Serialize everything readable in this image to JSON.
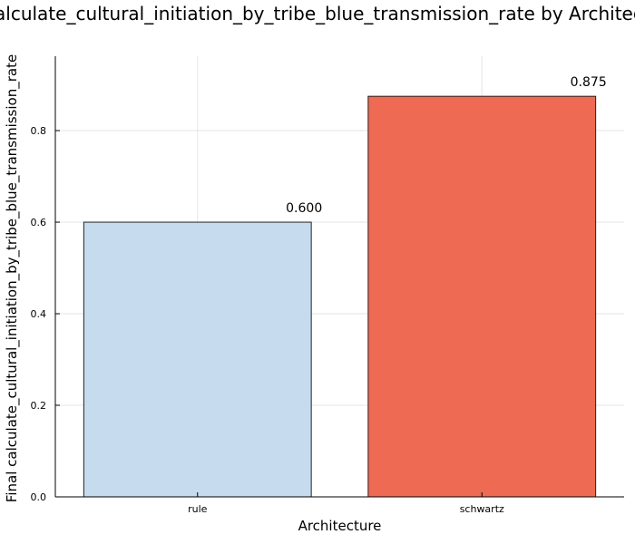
{
  "chart_data": {
    "type": "bar",
    "title": "Final calculate_cultural_initiation_by_tribe_blue_transmission_rate by Architecture",
    "xlabel": "Architecture",
    "ylabel": "Final calculate_cultural_initiation_by_tribe_blue_transmission_rate",
    "categories": [
      "rule",
      "schwartz"
    ],
    "values": [
      0.6,
      0.875
    ],
    "data_labels": [
      "0.600",
      "0.875"
    ],
    "colors": [
      "#c6dbed",
      "#ef6a53"
    ],
    "ylim": [
      0,
      0.9625
    ],
    "yticks": [
      0.0,
      0.2,
      0.4,
      0.6,
      0.8
    ],
    "ytick_labels": [
      "0.0",
      "0.2",
      "0.4",
      "0.6",
      "0.8"
    ],
    "grid": true,
    "legend": "none"
  }
}
